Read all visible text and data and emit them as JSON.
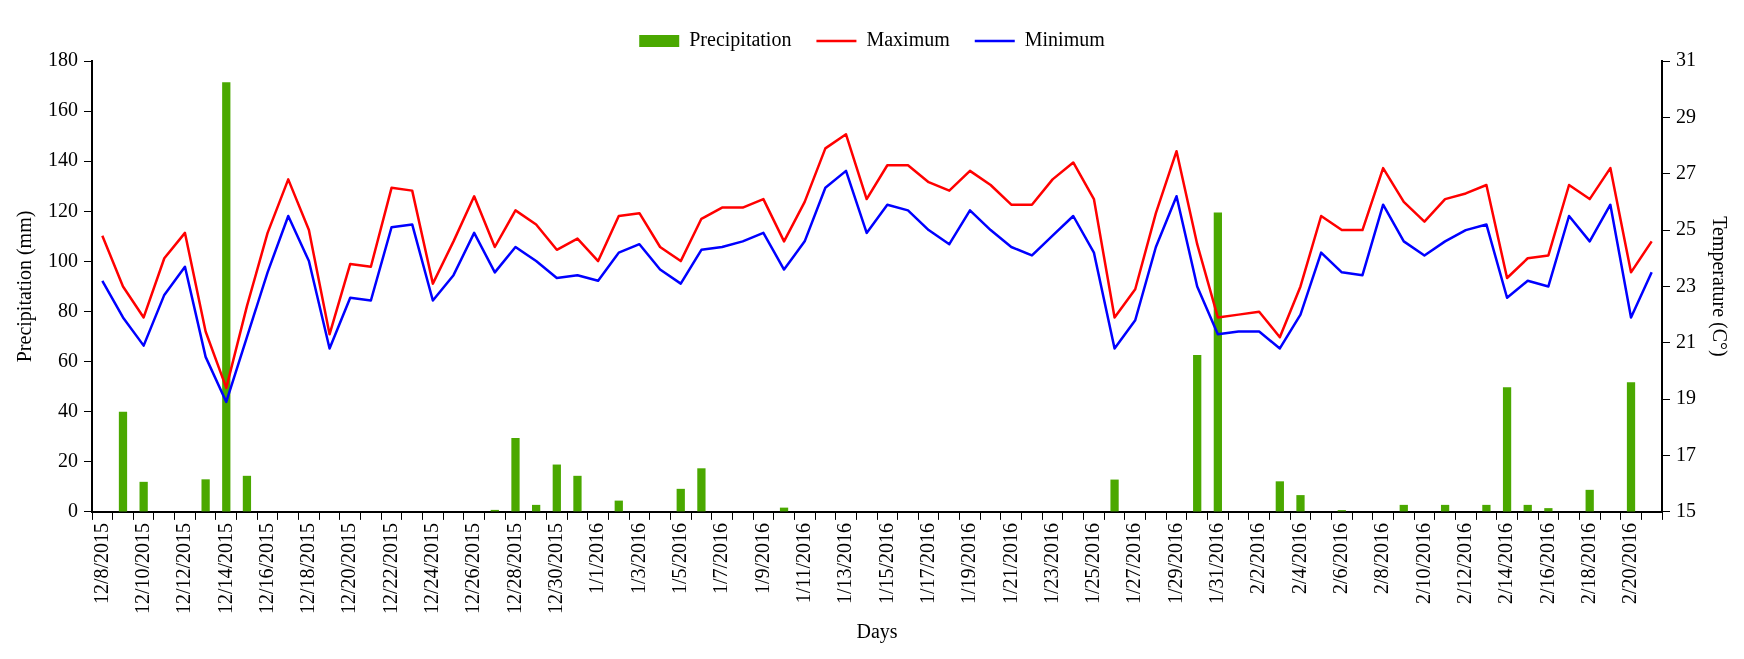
{
  "chart_data": {
    "type": "bar",
    "xlabel": "Days",
    "ylabel": "Precipitation (mm)",
    "y2label": "Temperature (C°)",
    "legend": "top",
    "marker": "none",
    "grid": false,
    "categories": [
      "12/8/2015",
      null,
      "12/10/2015",
      null,
      "12/12/2015",
      null,
      "12/14/2015",
      null,
      "12/16/2015",
      null,
      "12/18/2015",
      null,
      "12/20/2015",
      null,
      "12/22/2015",
      null,
      "12/24/2015",
      null,
      "12/26/2015",
      null,
      "12/28/2015",
      null,
      "12/30/2015",
      null,
      "1/1/2016",
      null,
      "1/3/2016",
      null,
      "1/5/2016",
      null,
      "1/7/2016",
      null,
      "1/9/2016",
      null,
      "1/11/2016",
      null,
      "1/13/2016",
      null,
      "1/15/2016",
      null,
      "1/17/2016",
      null,
      "1/19/2016",
      null,
      "1/21/2016",
      null,
      "1/23/2016",
      null,
      "1/25/2016",
      null,
      "1/27/2016",
      null,
      "1/29/2016",
      null,
      "1/31/2016",
      null,
      "2/2/2016",
      null,
      "2/4/2016",
      null,
      "2/6/2016",
      null,
      "2/8/2016",
      null,
      "2/10/2016",
      null,
      "2/12/2016",
      null,
      "2/14/2016",
      null,
      "2/16/2016",
      null,
      "2/18/2016",
      null,
      "2/20/2016",
      null
    ],
    "ylim": [
      0,
      180
    ],
    "yticks": [
      0,
      20,
      40,
      60,
      80,
      100,
      120,
      140,
      160,
      180
    ],
    "y2lim": [
      15,
      31
    ],
    "y2ticks": [
      15,
      17,
      19,
      21,
      23,
      25,
      27,
      29,
      31
    ],
    "series": [
      {
        "name": "Precipitation",
        "color": "#4aa800",
        "values": [
          0,
          40,
          12,
          0,
          0,
          13,
          171.5,
          14.4,
          0,
          0,
          0,
          0,
          0,
          0,
          0,
          0,
          0,
          0,
          0,
          0.8,
          29.5,
          2.8,
          18.9,
          14.4,
          0,
          4.5,
          0,
          0,
          9.2,
          17.4,
          0,
          0,
          0,
          1.7,
          0,
          0,
          0,
          0,
          0,
          0,
          0,
          0,
          0,
          0,
          0,
          0,
          0,
          0,
          0,
          12.9,
          0,
          0,
          0,
          62.6,
          119.5,
          0,
          0,
          12.2,
          6.7,
          0,
          0.7,
          0,
          0,
          2.8,
          0,
          2.8,
          0,
          2.8,
          49.8,
          2.8,
          1.5,
          0,
          8.8,
          0,
          51.8,
          0
        ]
      },
      {
        "name": "Maximum",
        "type": "line",
        "axis": "y2",
        "color": "#ff0000",
        "values": [
          24.8,
          23.0,
          21.9,
          24.0,
          24.9,
          21.4,
          19.4,
          22.3,
          24.9,
          26.8,
          25.0,
          21.3,
          23.8,
          23.7,
          26.5,
          26.4,
          23.1,
          24.6,
          26.2,
          24.4,
          25.7,
          25.2,
          24.3,
          24.7,
          23.9,
          25.5,
          25.6,
          24.4,
          23.9,
          25.4,
          25.8,
          25.8,
          26.1,
          24.6,
          26.0,
          27.9,
          28.4,
          26.1,
          27.3,
          27.3,
          26.7,
          26.4,
          27.1,
          26.6,
          25.9,
          25.9,
          26.8,
          27.4,
          26.1,
          21.9,
          22.9,
          25.6,
          27.8,
          24.5,
          21.9,
          22.0,
          22.1,
          21.2,
          23.0,
          25.5,
          25.0,
          25.0,
          27.2,
          26.0,
          25.3,
          26.1,
          26.3,
          26.6,
          23.3,
          24.0,
          24.1,
          26.6,
          26.1,
          27.2,
          23.5,
          24.6
        ]
      },
      {
        "name": "Minimum",
        "type": "line",
        "axis": "y2",
        "color": "#0000ff",
        "values": [
          23.2,
          21.9,
          20.9,
          22.7,
          23.7,
          20.5,
          18.9,
          21.2,
          23.5,
          25.5,
          23.9,
          20.8,
          22.6,
          22.5,
          25.1,
          25.2,
          22.5,
          23.4,
          24.9,
          23.5,
          24.4,
          23.9,
          23.3,
          23.4,
          23.2,
          24.2,
          24.5,
          23.6,
          23.1,
          24.3,
          24.4,
          24.6,
          24.9,
          23.6,
          24.6,
          26.5,
          27.1,
          24.9,
          25.9,
          25.7,
          25.0,
          24.5,
          25.7,
          25.0,
          24.4,
          24.1,
          24.8,
          25.5,
          24.2,
          20.8,
          21.8,
          24.4,
          26.2,
          23.0,
          21.3,
          21.4,
          21.4,
          20.8,
          22.0,
          24.2,
          23.5,
          23.4,
          25.9,
          24.6,
          24.1,
          24.6,
          25.0,
          25.2,
          22.6,
          23.2,
          23.0,
          25.5,
          24.6,
          25.9,
          21.9,
          23.5
        ]
      }
    ]
  }
}
